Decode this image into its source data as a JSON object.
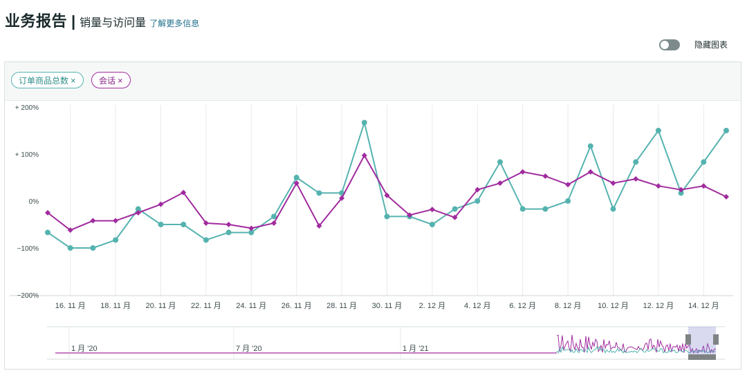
{
  "header": {
    "title": "业务报告",
    "separator": "|",
    "subtitle": "销量与访问量",
    "learn_more": "了解更多信息"
  },
  "toggle": {
    "label": "隐藏图表",
    "on": false
  },
  "legend": {
    "orders_label": "订单商品总数",
    "sessions_label": "会话",
    "remove_symbol": "×"
  },
  "colors": {
    "orders": "#55b3af",
    "sessions": "#a02b9e",
    "grid": "#e7eaeb"
  },
  "chart_data": {
    "type": "line",
    "ylim": [
      -200,
      200
    ],
    "y_ticks": [
      "+ 200%",
      "+ 100%",
      "0%",
      "−100%",
      "−200%"
    ],
    "y_tick_values": [
      200,
      100,
      0,
      -100,
      -200
    ],
    "x_tick_labels": [
      "16. 11 月",
      "18. 11 月",
      "20. 11 月",
      "22. 11 月",
      "24. 11 月",
      "26. 11 月",
      "28. 11 月",
      "30. 11 月",
      "2. 12 月",
      "4. 12 月",
      "6. 12 月",
      "8. 12 月",
      "10. 12 月",
      "12. 12 月",
      "14. 12 月"
    ],
    "x_tick_index": [
      1,
      3,
      5,
      7,
      9,
      11,
      13,
      15,
      17,
      19,
      21,
      23,
      25,
      27,
      29
    ],
    "series": [
      {
        "name": "订单商品总数",
        "marker": "circle",
        "values": [
          -67,
          -100,
          -100,
          -83,
          -17,
          -50,
          -50,
          -83,
          -67,
          -67,
          -33,
          50,
          17,
          17,
          167,
          -33,
          -33,
          -50,
          -17,
          0,
          83,
          -17,
          -17,
          0,
          117,
          -17,
          83,
          150,
          17,
          83,
          150
        ]
      },
      {
        "name": "会话",
        "marker": "diamond",
        "values": [
          -25,
          -62,
          -42,
          -42,
          -25,
          -7,
          18,
          -47,
          -50,
          -58,
          -47,
          38,
          -53,
          6,
          97,
          12,
          -30,
          -18,
          -35,
          24,
          38,
          62,
          53,
          35,
          62,
          38,
          47,
          32,
          24,
          32,
          9
        ]
      }
    ],
    "navigator": {
      "labels": [
        "1 月 '20",
        "7 月 '20",
        "1 月 '21"
      ]
    }
  }
}
